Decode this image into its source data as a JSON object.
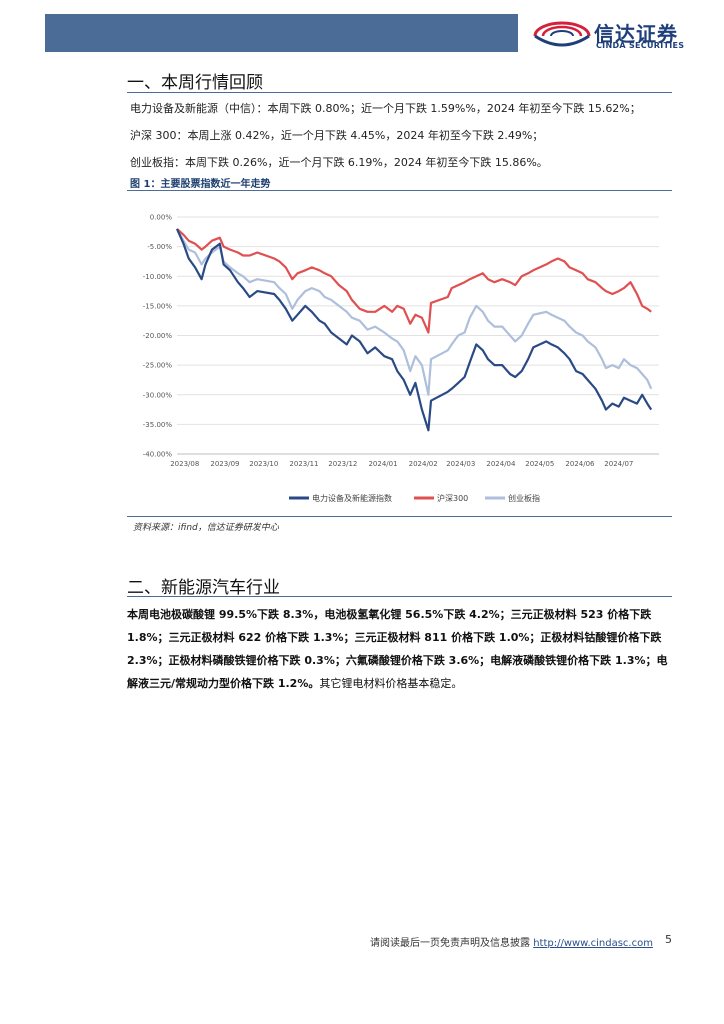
{
  "header": {
    "logo_cn": "信达证券",
    "logo_en": "CINDA SECURITIES",
    "brand_color": "#1e3f7a",
    "logo_accent": "#d6203a",
    "bar_color": "#4a6c96"
  },
  "section1": {
    "title": "一、本周行情回顾",
    "lines": [
      "电力设备及新能源（中信）：本周下跌 0.80%；近一个月下跌 1.59%%，2024 年初至今下跌 15.62%；",
      "沪深 300：本周上涨 0.42%，近一个月下跌 4.45%，2024 年初至今下跌 2.49%；",
      "创业板指：本周下跌 0.26%，近一个月下跌 6.19%，2024 年初至今下跌 15.86%。"
    ]
  },
  "figure": {
    "title": "图 1：主要股票指数近一年走势",
    "source": "资料来源：ifind，信达证券研发中心"
  },
  "chart_data": {
    "type": "line",
    "x_ticks": [
      "2023/08",
      "2023/09",
      "2023/10",
      "2023/11",
      "2023/12",
      "2024/01",
      "2024/02",
      "2024/03",
      "2024/04",
      "2024/05",
      "2024/06",
      "2024/07"
    ],
    "y_ticks": [
      "0.00%",
      "-5.00%",
      "-10.00%",
      "-15.00%",
      "-20.00%",
      "-25.00%",
      "-30.00%",
      "-35.00%",
      "-40.00%"
    ],
    "ylim": [
      -40,
      0
    ],
    "grid": true,
    "legend_position": "bottom",
    "x_start": "2023/07/26",
    "series": [
      {
        "name": "电力设备及新能源指数",
        "color": "#2a4a85",
        "points": [
          [
            "2023/07/26",
            -2.0
          ],
          [
            "2023/07/31",
            -4.5
          ],
          [
            "2023/08/04",
            -7.0
          ],
          [
            "2023/08/09",
            -8.5
          ],
          [
            "2023/08/14",
            -10.5
          ],
          [
            "2023/08/17",
            -8.0
          ],
          [
            "2023/08/22",
            -5.5
          ],
          [
            "2023/08/28",
            -4.5
          ],
          [
            "2023/08/31",
            -8.0
          ],
          [
            "2023/09/05",
            -9.0
          ],
          [
            "2023/09/11",
            -11.0
          ],
          [
            "2023/09/15",
            -12.0
          ],
          [
            "2023/09/20",
            -13.5
          ],
          [
            "2023/09/26",
            -12.5
          ],
          [
            "2023/10/09",
            -13.0
          ],
          [
            "2023/10/13",
            -14.0
          ],
          [
            "2023/10/18",
            -15.5
          ],
          [
            "2023/10/23",
            -17.5
          ],
          [
            "2023/10/27",
            -16.5
          ],
          [
            "2023/11/02",
            -15.0
          ],
          [
            "2023/11/07",
            -16.0
          ],
          [
            "2023/11/13",
            -17.5
          ],
          [
            "2023/11/17",
            -18.0
          ],
          [
            "2023/11/22",
            -19.5
          ],
          [
            "2023/11/28",
            -20.5
          ],
          [
            "2023/12/04",
            -21.5
          ],
          [
            "2023/12/08",
            -20.0
          ],
          [
            "2023/12/14",
            -21.0
          ],
          [
            "2023/12/20",
            -23.0
          ],
          [
            "2023/12/26",
            -22.0
          ],
          [
            "2024/01/02",
            -23.5
          ],
          [
            "2024/01/08",
            -24.0
          ],
          [
            "2024/01/12",
            -26.0
          ],
          [
            "2024/01/17",
            -27.5
          ],
          [
            "2024/01/22",
            -30.0
          ],
          [
            "2024/01/26",
            -28.0
          ],
          [
            "2024/01/31",
            -32.5
          ],
          [
            "2024/02/05",
            -36.0
          ],
          [
            "2024/02/07",
            -31.0
          ],
          [
            "2024/02/20",
            -29.5
          ],
          [
            "2024/02/23",
            -29.0
          ],
          [
            "2024/02/28",
            -28.0
          ],
          [
            "2024/03/04",
            -27.0
          ],
          [
            "2024/03/08",
            -24.5
          ],
          [
            "2024/03/13",
            -21.5
          ],
          [
            "2024/03/18",
            -22.5
          ],
          [
            "2024/03/22",
            -24.0
          ],
          [
            "2024/03/27",
            -25.0
          ],
          [
            "2024/04/02",
            -25.0
          ],
          [
            "2024/04/08",
            -26.5
          ],
          [
            "2024/04/12",
            -27.0
          ],
          [
            "2024/04/17",
            -26.0
          ],
          [
            "2024/04/22",
            -24.0
          ],
          [
            "2024/04/26",
            -22.0
          ],
          [
            "2024/05/06",
            -21.0
          ],
          [
            "2024/05/10",
            -21.5
          ],
          [
            "2024/05/15",
            -22.0
          ],
          [
            "2024/05/20",
            -23.0
          ],
          [
            "2024/05/24",
            -24.0
          ],
          [
            "2024/05/29",
            -26.0
          ],
          [
            "2024/06/03",
            -26.5
          ],
          [
            "2024/06/07",
            -27.5
          ],
          [
            "2024/06/13",
            -29.0
          ],
          [
            "2024/06/18",
            -31.0
          ],
          [
            "2024/06/21",
            -32.5
          ],
          [
            "2024/06/26",
            -31.5
          ],
          [
            "2024/07/01",
            -32.0
          ],
          [
            "2024/07/05",
            -30.5
          ],
          [
            "2024/07/10",
            -31.0
          ],
          [
            "2024/07/15",
            -31.5
          ],
          [
            "2024/07/19",
            -30.0
          ],
          [
            "2024/07/23",
            -31.5
          ],
          [
            "2024/07/26",
            -32.5
          ]
        ]
      },
      {
        "name": "沪深300",
        "color": "#e05050",
        "points": [
          [
            "2023/07/26",
            -2.0
          ],
          [
            "2023/07/31",
            -3.0
          ],
          [
            "2023/08/04",
            -4.0
          ],
          [
            "2023/08/09",
            -4.5
          ],
          [
            "2023/08/14",
            -5.5
          ],
          [
            "2023/08/17",
            -5.0
          ],
          [
            "2023/08/22",
            -4.0
          ],
          [
            "2023/08/28",
            -3.5
          ],
          [
            "2023/08/31",
            -5.0
          ],
          [
            "2023/09/05",
            -5.5
          ],
          [
            "2023/09/11",
            -6.0
          ],
          [
            "2023/09/15",
            -6.5
          ],
          [
            "2023/09/20",
            -6.5
          ],
          [
            "2023/09/26",
            -6.0
          ],
          [
            "2023/10/09",
            -7.0
          ],
          [
            "2023/10/13",
            -7.5
          ],
          [
            "2023/10/18",
            -8.5
          ],
          [
            "2023/10/23",
            -10.5
          ],
          [
            "2023/10/27",
            -9.5
          ],
          [
            "2023/11/02",
            -9.0
          ],
          [
            "2023/11/07",
            -8.5
          ],
          [
            "2023/11/13",
            -9.0
          ],
          [
            "2023/11/17",
            -9.5
          ],
          [
            "2023/11/22",
            -10.0
          ],
          [
            "2023/11/28",
            -11.5
          ],
          [
            "2023/12/04",
            -12.5
          ],
          [
            "2023/12/08",
            -14.0
          ],
          [
            "2023/12/14",
            -15.5
          ],
          [
            "2023/12/20",
            -16.0
          ],
          [
            "2023/12/26",
            -16.0
          ],
          [
            "2024/01/02",
            -15.0
          ],
          [
            "2024/01/08",
            -16.0
          ],
          [
            "2024/01/12",
            -15.0
          ],
          [
            "2024/01/17",
            -15.5
          ],
          [
            "2024/01/22",
            -18.0
          ],
          [
            "2024/01/26",
            -16.5
          ],
          [
            "2024/01/31",
            -17.0
          ],
          [
            "2024/02/05",
            -19.5
          ],
          [
            "2024/02/07",
            -14.5
          ],
          [
            "2024/02/20",
            -13.5
          ],
          [
            "2024/02/23",
            -12.0
          ],
          [
            "2024/02/28",
            -11.5
          ],
          [
            "2024/03/04",
            -11.0
          ],
          [
            "2024/03/08",
            -10.5
          ],
          [
            "2024/03/13",
            -10.0
          ],
          [
            "2024/03/18",
            -9.5
          ],
          [
            "2024/03/22",
            -10.5
          ],
          [
            "2024/03/27",
            -11.0
          ],
          [
            "2024/04/02",
            -10.5
          ],
          [
            "2024/04/08",
            -11.0
          ],
          [
            "2024/04/12",
            -11.5
          ],
          [
            "2024/04/17",
            -10.0
          ],
          [
            "2024/04/22",
            -9.5
          ],
          [
            "2024/04/26",
            -9.0
          ],
          [
            "2024/05/06",
            -8.0
          ],
          [
            "2024/05/10",
            -7.5
          ],
          [
            "2024/05/15",
            -7.0
          ],
          [
            "2024/05/20",
            -7.5
          ],
          [
            "2024/05/24",
            -8.5
          ],
          [
            "2024/05/29",
            -9.0
          ],
          [
            "2024/06/03",
            -9.5
          ],
          [
            "2024/06/07",
            -10.5
          ],
          [
            "2024/06/13",
            -11.0
          ],
          [
            "2024/06/18",
            -12.0
          ],
          [
            "2024/06/21",
            -12.5
          ],
          [
            "2024/06/26",
            -13.0
          ],
          [
            "2024/07/01",
            -12.5
          ],
          [
            "2024/07/05",
            -12.0
          ],
          [
            "2024/07/10",
            -11.0
          ],
          [
            "2024/07/15",
            -13.0
          ],
          [
            "2024/07/19",
            -15.0
          ],
          [
            "2024/07/23",
            -15.5
          ],
          [
            "2024/07/26",
            -16.0
          ]
        ]
      },
      {
        "name": "创业板指",
        "color": "#aebfdc",
        "points": [
          [
            "2023/07/26",
            -2.0
          ],
          [
            "2023/07/31",
            -4.0
          ],
          [
            "2023/08/04",
            -5.5
          ],
          [
            "2023/08/09",
            -6.0
          ],
          [
            "2023/08/14",
            -8.0
          ],
          [
            "2023/08/17",
            -7.0
          ],
          [
            "2023/08/22",
            -6.0
          ],
          [
            "2023/08/28",
            -5.0
          ],
          [
            "2023/08/31",
            -7.5
          ],
          [
            "2023/09/05",
            -8.5
          ],
          [
            "2023/09/11",
            -9.5
          ],
          [
            "2023/09/15",
            -10.0
          ],
          [
            "2023/09/20",
            -11.0
          ],
          [
            "2023/09/26",
            -10.5
          ],
          [
            "2023/10/09",
            -11.0
          ],
          [
            "2023/10/13",
            -12.0
          ],
          [
            "2023/10/18",
            -13.0
          ],
          [
            "2023/10/23",
            -15.5
          ],
          [
            "2023/10/27",
            -14.0
          ],
          [
            "2023/11/02",
            -12.5
          ],
          [
            "2023/11/07",
            -12.0
          ],
          [
            "2023/11/13",
            -12.5
          ],
          [
            "2023/11/17",
            -13.5
          ],
          [
            "2023/11/22",
            -14.0
          ],
          [
            "2023/11/28",
            -15.0
          ],
          [
            "2023/12/04",
            -16.0
          ],
          [
            "2023/12/08",
            -17.0
          ],
          [
            "2023/12/14",
            -17.5
          ],
          [
            "2023/12/20",
            -19.0
          ],
          [
            "2023/12/26",
            -18.5
          ],
          [
            "2024/01/02",
            -19.5
          ],
          [
            "2024/01/08",
            -20.5
          ],
          [
            "2024/01/12",
            -21.0
          ],
          [
            "2024/01/17",
            -22.5
          ],
          [
            "2024/01/22",
            -26.0
          ],
          [
            "2024/01/26",
            -23.5
          ],
          [
            "2024/01/31",
            -25.0
          ],
          [
            "2024/02/05",
            -30.0
          ],
          [
            "2024/02/07",
            -24.0
          ],
          [
            "2024/02/20",
            -22.5
          ],
          [
            "2024/02/23",
            -21.5
          ],
          [
            "2024/02/28",
            -20.0
          ],
          [
            "2024/03/04",
            -19.5
          ],
          [
            "2024/03/08",
            -17.0
          ],
          [
            "2024/03/13",
            -15.0
          ],
          [
            "2024/03/18",
            -16.0
          ],
          [
            "2024/03/22",
            -17.5
          ],
          [
            "2024/03/27",
            -18.5
          ],
          [
            "2024/04/02",
            -18.5
          ],
          [
            "2024/04/08",
            -20.0
          ],
          [
            "2024/04/12",
            -21.0
          ],
          [
            "2024/04/17",
            -20.0
          ],
          [
            "2024/04/22",
            -18.0
          ],
          [
            "2024/04/26",
            -16.5
          ],
          [
            "2024/05/06",
            -16.0
          ],
          [
            "2024/05/10",
            -16.5
          ],
          [
            "2024/05/15",
            -17.0
          ],
          [
            "2024/05/20",
            -17.5
          ],
          [
            "2024/05/24",
            -18.5
          ],
          [
            "2024/05/29",
            -19.5
          ],
          [
            "2024/06/03",
            -20.0
          ],
          [
            "2024/06/07",
            -21.0
          ],
          [
            "2024/06/13",
            -22.0
          ],
          [
            "2024/06/18",
            -24.0
          ],
          [
            "2024/06/21",
            -25.5
          ],
          [
            "2024/06/26",
            -25.0
          ],
          [
            "2024/07/01",
            -25.5
          ],
          [
            "2024/07/05",
            -24.0
          ],
          [
            "2024/07/10",
            -25.0
          ],
          [
            "2024/07/15",
            -25.5
          ],
          [
            "2024/07/19",
            -26.5
          ],
          [
            "2024/07/23",
            -27.5
          ],
          [
            "2024/07/26",
            -29.0
          ]
        ]
      }
    ]
  },
  "section2": {
    "title": "二、新能源汽车行业",
    "paragraph_bold": "本周电池极碳酸锂 99.5%下跌 8.3%，电池极氢氧化锂 56.5%下跌 4.2%；三元正极材料 523 价格下跌 1.8%；三元正极材料 622 价格下跌 1.3%；三元正极材料 811 价格下跌 1.0%；正极材料钴酸锂价格下跌 2.3%；正极材料磷酸铁锂价格下跌 0.3%；六氟磷酸锂价格下跌 3.6%；电解液磷酸铁锂价格下跌 1.3%；电解液三元/常规动力型价格下跌 1.2%。",
    "paragraph_normal": "其它锂电材料价格基本稳定。"
  },
  "footer": {
    "disclaimer": "请阅读最后一页免责声明及信息披露",
    "url": "http://www.cindasc.com",
    "page": "5"
  }
}
